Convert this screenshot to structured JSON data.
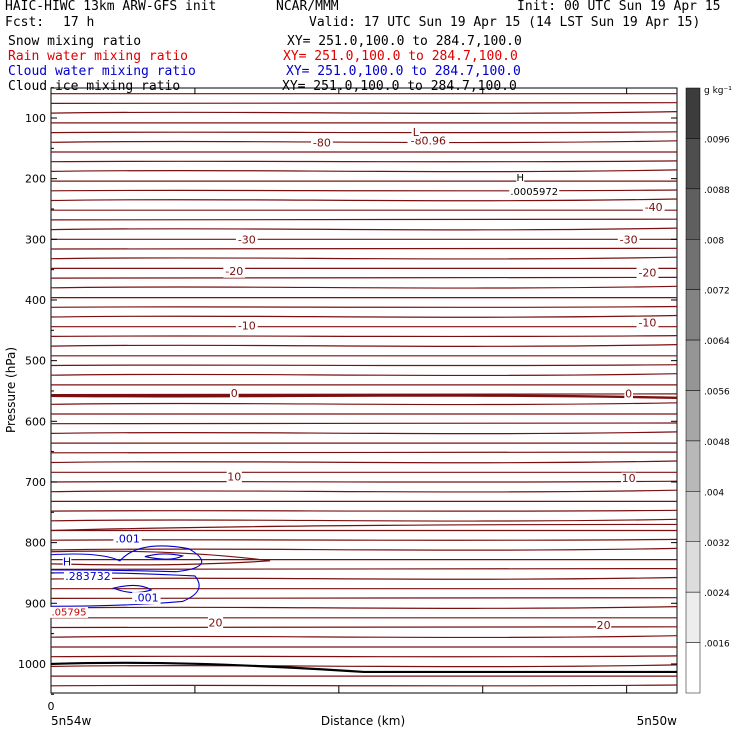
{
  "header": {
    "model": "HAIC-HIWC 13km ARW-GFS init",
    "org": "NCAR/MMM",
    "init": "Init: 00 UTC Sun 19 Apr 15",
    "fcst_label": "Fcst:",
    "fcst_value": "17 h",
    "valid": "Valid: 17 UTC Sun 19 Apr 15 (14 LST Sun 19 Apr 15)"
  },
  "fields": [
    {
      "name": "Snow mixing ratio",
      "xy": "XY= 251.0,100.0 to 284.7,100.0",
      "color": "#000000"
    },
    {
      "name": "Rain water mixing ratio",
      "xy": "XY= 251.0,100.0 to 284.7,100.0",
      "color": "#e00000"
    },
    {
      "name": "Cloud water mixing ratio",
      "xy": "XY= 251.0,100.0 to 284.7,100.0",
      "color": "#0000cc"
    },
    {
      "name": "Cloud ice mixing ratio",
      "xy": "XY= 251.0,100.0 to 284.7,100.0",
      "color": "#000000"
    }
  ],
  "chart_data": {
    "type": "contour",
    "xlabel": "Distance (km)",
    "ylabel": "Pressure (hPa)",
    "x_tick_label": "0",
    "x_start_label": "5n54w",
    "x_end_label": "5n50w",
    "yticks": [
      100,
      200,
      300,
      400,
      500,
      600,
      700,
      800,
      900,
      1000
    ],
    "ylim": [
      1050,
      50
    ],
    "colorbar": {
      "unit": "g kg⁻¹",
      "ticks": [
        ".0096",
        ".0088",
        ".008",
        ".0072",
        ".0064",
        ".0056",
        ".0048",
        ".004",
        ".0032",
        ".0024",
        ".0016"
      ]
    },
    "temperature_contour_color": "#7a1010",
    "temperature_labels": [
      {
        "text": "-80",
        "p": 147,
        "f": 0.42
      },
      {
        "text": "-80.96",
        "p": 144,
        "f": 0.59
      },
      {
        "text": "L",
        "p": 130,
        "f": 0.57
      },
      {
        "text": "-40",
        "p": 253,
        "f": 0.95
      },
      {
        "text": "-30",
        "p": 307,
        "f": 0.3
      },
      {
        "text": "-30",
        "p": 307,
        "f": 0.91
      },
      {
        "text": "-20",
        "p": 359,
        "f": 0.28
      },
      {
        "text": "-20",
        "p": 361,
        "f": 0.94
      },
      {
        "text": "-10",
        "p": 449,
        "f": 0.3
      },
      {
        "text": "-10",
        "p": 444,
        "f": 0.94
      },
      {
        "text": "0",
        "p": 560,
        "f": 0.28
      },
      {
        "text": "0",
        "p": 561,
        "f": 0.91
      },
      {
        "text": "10",
        "p": 698,
        "f": 0.28
      },
      {
        "text": "10",
        "p": 700,
        "f": 0.91
      },
      {
        "text": "20",
        "p": 938,
        "f": 0.25
      },
      {
        "text": "20",
        "p": 942,
        "f": 0.87
      }
    ],
    "high_label": {
      "marker": "H",
      "value": ".0005972",
      "p": 227,
      "f": 0.74
    },
    "cloud_water_labels": [
      {
        "text": ".001",
        "p": 800,
        "f": 0.1
      },
      {
        "text": "H",
        "p": 838,
        "f": 0.02
      },
      {
        "text": ".283732",
        "p": 862,
        "f": 0.02
      },
      {
        "text": ".001",
        "p": 897,
        "f": 0.13
      }
    ],
    "rain_labels": [
      {
        "text": ".05795",
        "p": 920,
        "f": 0.0
      }
    ]
  }
}
